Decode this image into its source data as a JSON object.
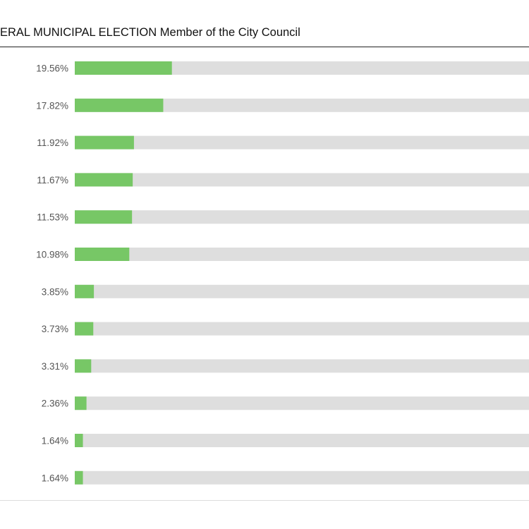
{
  "chart_data": {
    "type": "bar",
    "orientation": "horizontal",
    "title": "ERAL MUNICIPAL ELECTION Member of the City Council",
    "value_labels": [
      "19.56%",
      "17.82%",
      "11.92%",
      "11.67%",
      "11.53%",
      "10.98%",
      "3.85%",
      "3.73%",
      "3.31%",
      "2.36%",
      "1.64%",
      "1.64%"
    ],
    "values": [
      19.56,
      17.82,
      11.92,
      11.67,
      11.53,
      10.98,
      3.85,
      3.73,
      3.31,
      2.36,
      1.64,
      1.64
    ],
    "xlim": [
      0,
      100
    ],
    "grid": false,
    "colors": {
      "bar_fill": "#77c766",
      "track": "#dedede",
      "label": "#555555"
    }
  }
}
